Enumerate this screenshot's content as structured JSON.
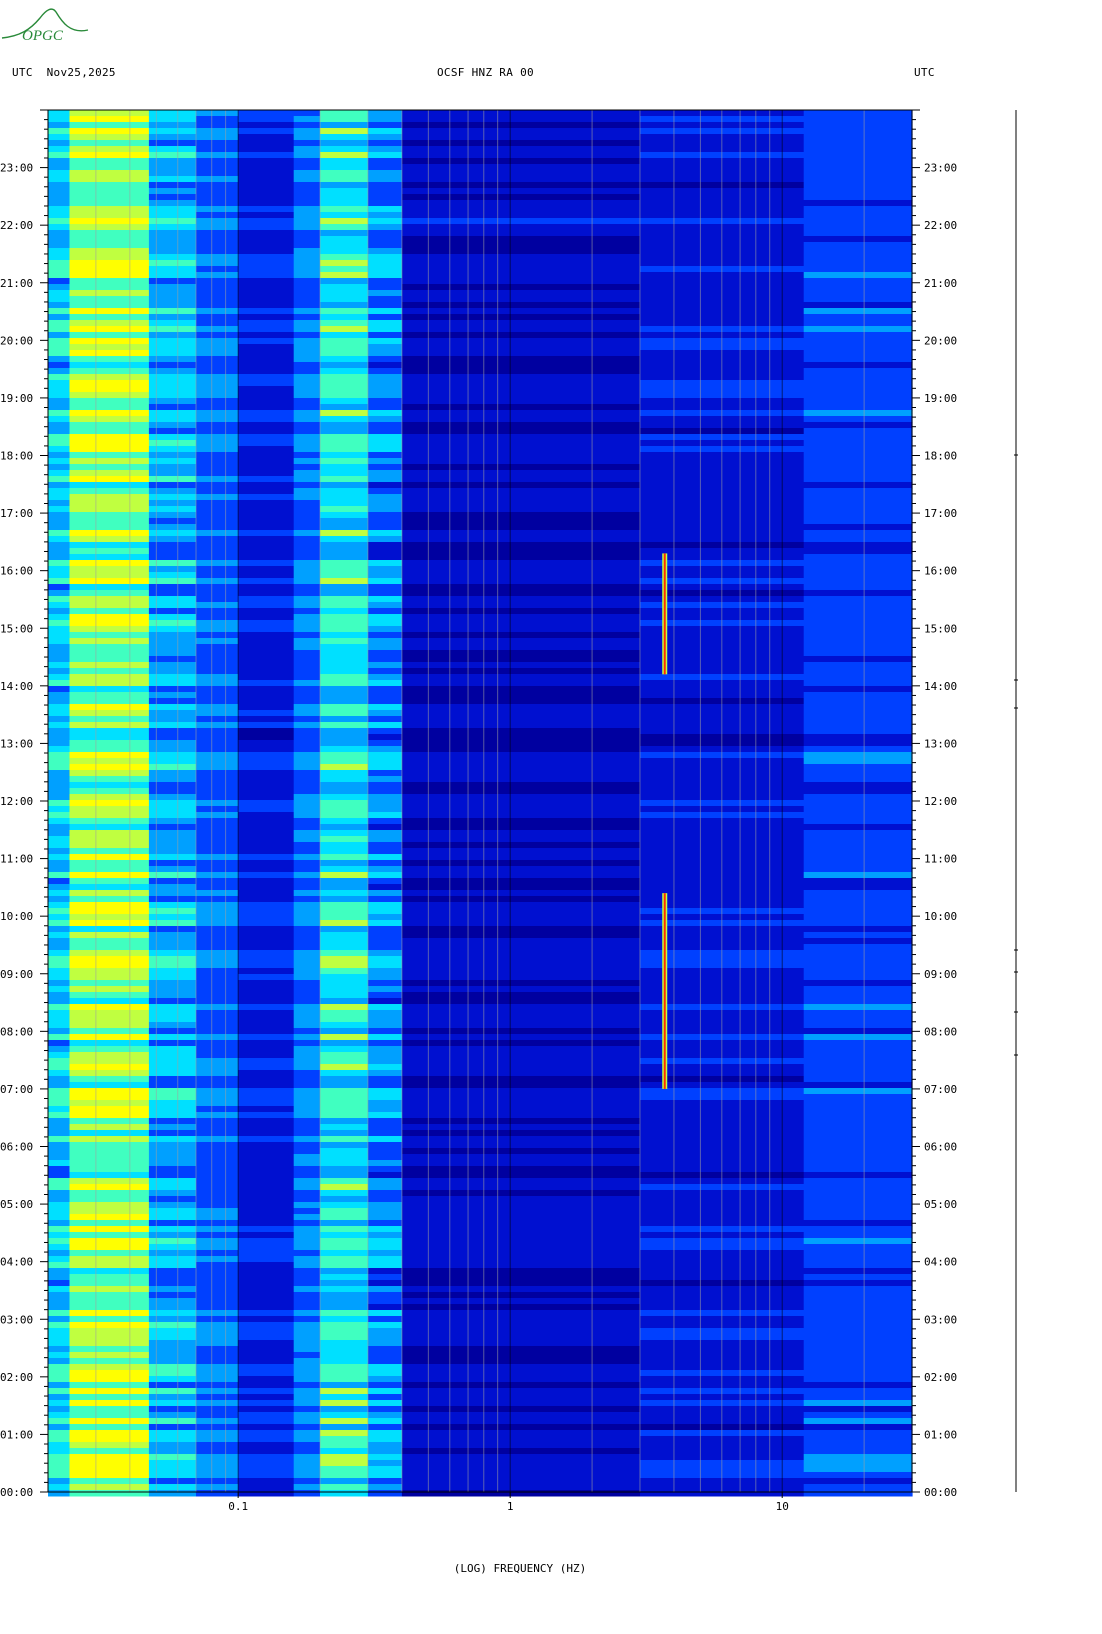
{
  "header": {
    "left": "UTC  Nov25,2025",
    "center": "OCSF HNZ RA 00",
    "right": "UTC"
  },
  "logo": {
    "text": "OPGC",
    "color": "#2a8a3a"
  },
  "chart_data": {
    "type": "heatmap",
    "title": "OCSF HNZ RA 00",
    "date": "Nov25,2025",
    "xlabel": "(LOG) FREQUENCY (HZ)",
    "ylabel": "UTC",
    "xscale": "log",
    "xlim": [
      0.02,
      30
    ],
    "ylim": [
      0,
      24
    ],
    "x_ticks": [
      {
        "value": 0.1,
        "label": "0.1"
      },
      {
        "value": 1,
        "label": "1"
      },
      {
        "value": 10,
        "label": "10"
      }
    ],
    "y_ticks": [
      "00:00",
      "01:00",
      "02:00",
      "03:00",
      "04:00",
      "05:00",
      "06:00",
      "07:00",
      "08:00",
      "09:00",
      "10:00",
      "11:00",
      "12:00",
      "13:00",
      "14:00",
      "15:00",
      "16:00",
      "17:00",
      "18:00",
      "19:00",
      "20:00",
      "21:00",
      "22:00",
      "23:00"
    ],
    "grid": true,
    "colormap": [
      "#0000a0",
      "#0010d0",
      "#0040ff",
      "#00a0ff",
      "#00e0ff",
      "#40ffc0",
      "#c0ff40",
      "#ffff00",
      "#ff8000",
      "#ff0000"
    ],
    "bands": [
      {
        "f_min": 0.02,
        "f_max": 0.024,
        "level": 0.42
      },
      {
        "f_min": 0.024,
        "f_max": 0.047,
        "level": 0.62
      },
      {
        "f_min": 0.047,
        "f_max": 0.07,
        "level": 0.38
      },
      {
        "f_min": 0.07,
        "f_max": 0.1,
        "level": 0.28
      },
      {
        "f_min": 0.1,
        "f_max": 0.16,
        "level": 0.18
      },
      {
        "f_min": 0.16,
        "f_max": 0.2,
        "level": 0.3
      },
      {
        "f_min": 0.2,
        "f_max": 0.3,
        "level": 0.48
      },
      {
        "f_min": 0.3,
        "f_max": 0.4,
        "level": 0.32
      },
      {
        "f_min": 0.4,
        "f_max": 3,
        "level": 0.12
      },
      {
        "f_min": 3,
        "f_max": 12,
        "level": 0.16
      },
      {
        "f_min": 12,
        "f_max": 30,
        "level": 0.24
      }
    ],
    "spectral_lines": [
      {
        "freq": 3.7,
        "t_start": 14.2,
        "t_end": 16.3
      },
      {
        "freq": 3.7,
        "t_start": 7.0,
        "t_end": 10.4
      }
    ]
  }
}
